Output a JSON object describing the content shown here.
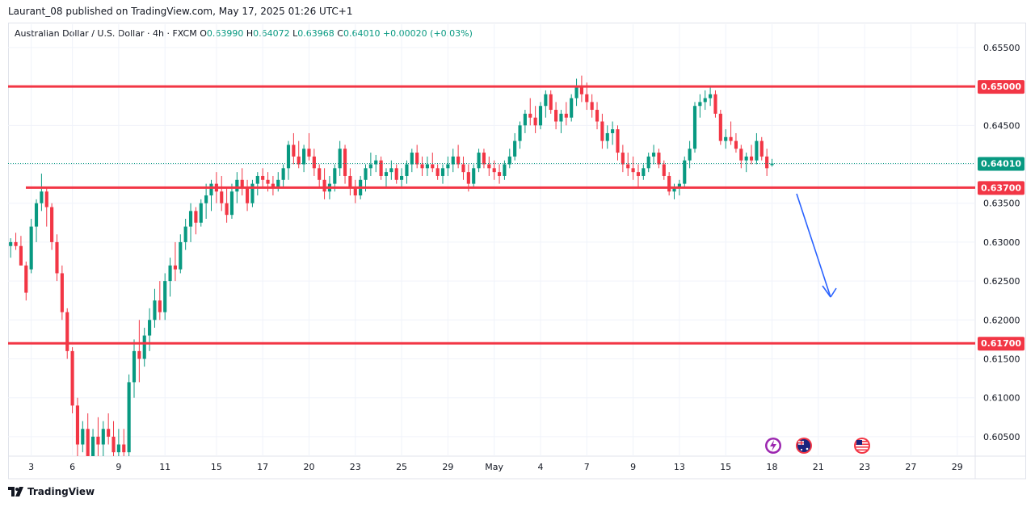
{
  "publication": "Laurant_08 published on TradingView.com, May 17, 2025 01:26 UTC+1",
  "legend": {
    "symbol": "Australian Dollar / U.S. Dollar · 4h · FXCM",
    "open_label": "O",
    "open": "0.63990",
    "high_label": "H",
    "high": "0.64072",
    "low_label": "L",
    "low": "0.63968",
    "close_label": "C",
    "close": "0.64010",
    "change": "+0.00020 (+0.03%)"
  },
  "brand": "TradingView",
  "colors": {
    "up": "#089981",
    "down": "#f23645",
    "level": "#f23645",
    "arrow": "#2962ff",
    "price_label": "#089981"
  },
  "chart_data": {
    "type": "candlestick",
    "title": "Australian Dollar / U.S. Dollar · 4h · FXCM",
    "ylim": [
      0.6025,
      0.658
    ],
    "y_ticks": [
      "0.65500",
      "0.65000",
      "0.64500",
      "0.64000",
      "0.63500",
      "0.63000",
      "0.62500",
      "0.62000",
      "0.61500",
      "0.61000",
      "0.60500"
    ],
    "x_ticks": [
      {
        "label": "3",
        "i": 4
      },
      {
        "label": "6",
        "i": 12
      },
      {
        "label": "9",
        "i": 21
      },
      {
        "label": "11",
        "i": 30
      },
      {
        "label": "15",
        "i": 40
      },
      {
        "label": "17",
        "i": 49
      },
      {
        "label": "20",
        "i": 58
      },
      {
        "label": "23",
        "i": 67
      },
      {
        "label": "25",
        "i": 76
      },
      {
        "label": "29",
        "i": 85
      },
      {
        "label": "May",
        "i": 94
      },
      {
        "label": "4",
        "i": 103
      },
      {
        "label": "7",
        "i": 112
      },
      {
        "label": "9",
        "i": 121
      },
      {
        "label": "13",
        "i": 130
      },
      {
        "label": "15",
        "i": 139
      },
      {
        "label": "18",
        "i": 148
      },
      {
        "label": "21",
        "i": 157
      },
      {
        "label": "23",
        "i": 166
      },
      {
        "label": "27",
        "i": 175
      },
      {
        "label": "29",
        "i": 184
      }
    ],
    "levels": [
      {
        "price": 0.65,
        "label": "0.65000"
      },
      {
        "price": 0.637,
        "label": "0.63700"
      },
      {
        "price": 0.617,
        "label": "0.61700"
      }
    ],
    "last_price": {
      "price": 0.6401,
      "label": "0.64010"
    },
    "candles": [
      [
        0.6295,
        0.6305,
        0.628,
        0.63
      ],
      [
        0.63,
        0.6312,
        0.629,
        0.6295
      ],
      [
        0.6295,
        0.6308,
        0.627,
        0.627
      ],
      [
        0.627,
        0.6275,
        0.6225,
        0.6235
      ],
      [
        0.6265,
        0.633,
        0.626,
        0.632
      ],
      [
        0.632,
        0.6355,
        0.63,
        0.635
      ],
      [
        0.635,
        0.6388,
        0.634,
        0.6365
      ],
      [
        0.6365,
        0.637,
        0.632,
        0.6345
      ],
      [
        0.6345,
        0.635,
        0.629,
        0.63
      ],
      [
        0.63,
        0.631,
        0.625,
        0.626
      ],
      [
        0.626,
        0.627,
        0.62,
        0.621
      ],
      [
        0.621,
        0.6215,
        0.615,
        0.616
      ],
      [
        0.616,
        0.6165,
        0.608,
        0.609
      ],
      [
        0.609,
        0.61,
        0.602,
        0.604
      ],
      [
        0.604,
        0.607,
        0.603,
        0.606
      ],
      [
        0.606,
        0.608,
        0.6,
        0.602
      ],
      [
        0.602,
        0.606,
        0.6,
        0.605
      ],
      [
        0.605,
        0.6075,
        0.602,
        0.604
      ],
      [
        0.604,
        0.607,
        0.601,
        0.606
      ],
      [
        0.606,
        0.608,
        0.604,
        0.605
      ],
      [
        0.605,
        0.607,
        0.602,
        0.603
      ],
      [
        0.603,
        0.606,
        0.601,
        0.604
      ],
      [
        0.604,
        0.606,
        0.602,
        0.603
      ],
      [
        0.603,
        0.613,
        0.602,
        0.612
      ],
      [
        0.612,
        0.6175,
        0.61,
        0.616
      ],
      [
        0.616,
        0.62,
        0.612,
        0.615
      ],
      [
        0.615,
        0.619,
        0.614,
        0.618
      ],
      [
        0.618,
        0.6215,
        0.616,
        0.62
      ],
      [
        0.62,
        0.624,
        0.619,
        0.6225
      ],
      [
        0.6225,
        0.625,
        0.62,
        0.621
      ],
      [
        0.621,
        0.626,
        0.62,
        0.625
      ],
      [
        0.625,
        0.628,
        0.623,
        0.627
      ],
      [
        0.627,
        0.63,
        0.625,
        0.6265
      ],
      [
        0.6265,
        0.631,
        0.626,
        0.63
      ],
      [
        0.63,
        0.633,
        0.629,
        0.632
      ],
      [
        0.632,
        0.635,
        0.63,
        0.634
      ],
      [
        0.634,
        0.6345,
        0.631,
        0.6325
      ],
      [
        0.6325,
        0.6355,
        0.632,
        0.635
      ],
      [
        0.635,
        0.6375,
        0.633,
        0.636
      ],
      [
        0.636,
        0.638,
        0.634,
        0.6375
      ],
      [
        0.6375,
        0.639,
        0.635,
        0.6365
      ],
      [
        0.6365,
        0.6385,
        0.634,
        0.635
      ],
      [
        0.635,
        0.637,
        0.6325,
        0.6335
      ],
      [
        0.6335,
        0.6375,
        0.633,
        0.6365
      ],
      [
        0.6365,
        0.639,
        0.635,
        0.638
      ],
      [
        0.638,
        0.6395,
        0.636,
        0.637
      ],
      [
        0.637,
        0.638,
        0.634,
        0.635
      ],
      [
        0.635,
        0.638,
        0.6345,
        0.6375
      ],
      [
        0.6375,
        0.639,
        0.636,
        0.6385
      ],
      [
        0.6385,
        0.6395,
        0.637,
        0.638
      ],
      [
        0.638,
        0.639,
        0.6365,
        0.6375
      ],
      [
        0.6375,
        0.6385,
        0.636,
        0.637
      ],
      [
        0.637,
        0.639,
        0.6365,
        0.638
      ],
      [
        0.638,
        0.64,
        0.637,
        0.6395
      ],
      [
        0.6395,
        0.643,
        0.638,
        0.6425
      ],
      [
        0.6425,
        0.644,
        0.64,
        0.641
      ],
      [
        0.641,
        0.643,
        0.6395,
        0.64
      ],
      [
        0.64,
        0.6425,
        0.639,
        0.642
      ],
      [
        0.642,
        0.644,
        0.6405,
        0.641
      ],
      [
        0.641,
        0.642,
        0.6385,
        0.6395
      ],
      [
        0.6395,
        0.64,
        0.637,
        0.638
      ],
      [
        0.638,
        0.6395,
        0.6355,
        0.6365
      ],
      [
        0.6365,
        0.6385,
        0.6355,
        0.6375
      ],
      [
        0.6375,
        0.64,
        0.6365,
        0.6395
      ],
      [
        0.6395,
        0.643,
        0.6385,
        0.642
      ],
      [
        0.642,
        0.6425,
        0.6375,
        0.6385
      ],
      [
        0.6385,
        0.6395,
        0.636,
        0.637
      ],
      [
        0.637,
        0.638,
        0.635,
        0.636
      ],
      [
        0.636,
        0.6385,
        0.6355,
        0.638
      ],
      [
        0.638,
        0.64,
        0.6365,
        0.6395
      ],
      [
        0.6395,
        0.6415,
        0.6385,
        0.64
      ],
      [
        0.64,
        0.6412,
        0.639,
        0.6405
      ],
      [
        0.6405,
        0.641,
        0.638,
        0.6385
      ],
      [
        0.6385,
        0.6395,
        0.637,
        0.639
      ],
      [
        0.639,
        0.6405,
        0.638,
        0.6395
      ],
      [
        0.6395,
        0.64,
        0.6375,
        0.638
      ],
      [
        0.638,
        0.6395,
        0.637,
        0.6385
      ],
      [
        0.6385,
        0.6405,
        0.6375,
        0.64
      ],
      [
        0.64,
        0.642,
        0.639,
        0.6415
      ],
      [
        0.6415,
        0.6425,
        0.6395,
        0.64
      ],
      [
        0.64,
        0.641,
        0.6385,
        0.6395
      ],
      [
        0.6395,
        0.641,
        0.6385,
        0.64
      ],
      [
        0.64,
        0.6415,
        0.639,
        0.6395
      ],
      [
        0.6395,
        0.64,
        0.638,
        0.6385
      ],
      [
        0.6385,
        0.64,
        0.6375,
        0.6395
      ],
      [
        0.6395,
        0.641,
        0.6385,
        0.64
      ],
      [
        0.64,
        0.642,
        0.639,
        0.641
      ],
      [
        0.641,
        0.6425,
        0.6395,
        0.64
      ],
      [
        0.64,
        0.641,
        0.638,
        0.639
      ],
      [
        0.639,
        0.64,
        0.6365,
        0.6375
      ],
      [
        0.6375,
        0.64,
        0.637,
        0.6395
      ],
      [
        0.6395,
        0.642,
        0.639,
        0.6415
      ],
      [
        0.6415,
        0.642,
        0.6395,
        0.64
      ],
      [
        0.64,
        0.641,
        0.6385,
        0.6395
      ],
      [
        0.6395,
        0.6405,
        0.638,
        0.639
      ],
      [
        0.639,
        0.64,
        0.6375,
        0.6385
      ],
      [
        0.6385,
        0.6405,
        0.638,
        0.64
      ],
      [
        0.64,
        0.642,
        0.6395,
        0.641
      ],
      [
        0.641,
        0.644,
        0.6405,
        0.643
      ],
      [
        0.643,
        0.6455,
        0.642,
        0.645
      ],
      [
        0.645,
        0.647,
        0.644,
        0.6465
      ],
      [
        0.6465,
        0.6485,
        0.645,
        0.646
      ],
      [
        0.646,
        0.6475,
        0.644,
        0.645
      ],
      [
        0.645,
        0.648,
        0.6445,
        0.6475
      ],
      [
        0.6475,
        0.6495,
        0.646,
        0.649
      ],
      [
        0.649,
        0.6495,
        0.6465,
        0.647
      ],
      [
        0.647,
        0.648,
        0.6445,
        0.6455
      ],
      [
        0.6455,
        0.647,
        0.644,
        0.6465
      ],
      [
        0.6465,
        0.648,
        0.645,
        0.646
      ],
      [
        0.646,
        0.649,
        0.6455,
        0.6485
      ],
      [
        0.6485,
        0.651,
        0.6475,
        0.65
      ],
      [
        0.65,
        0.6514,
        0.648,
        0.649
      ],
      [
        0.649,
        0.6505,
        0.647,
        0.648
      ],
      [
        0.648,
        0.649,
        0.646,
        0.647
      ],
      [
        0.647,
        0.648,
        0.6445,
        0.6455
      ],
      [
        0.6455,
        0.6465,
        0.642,
        0.643
      ],
      [
        0.643,
        0.645,
        0.642,
        0.644
      ],
      [
        0.644,
        0.6455,
        0.6425,
        0.6445
      ],
      [
        0.6445,
        0.645,
        0.6405,
        0.6415
      ],
      [
        0.6415,
        0.6425,
        0.639,
        0.64
      ],
      [
        0.64,
        0.6415,
        0.6385,
        0.6395
      ],
      [
        0.6395,
        0.641,
        0.638,
        0.639
      ],
      [
        0.639,
        0.64,
        0.637,
        0.6385
      ],
      [
        0.6385,
        0.64,
        0.638,
        0.6395
      ],
      [
        0.6395,
        0.6415,
        0.639,
        0.641
      ],
      [
        0.641,
        0.6425,
        0.64,
        0.6415
      ],
      [
        0.6415,
        0.642,
        0.6395,
        0.64
      ],
      [
        0.64,
        0.6405,
        0.638,
        0.6385
      ],
      [
        0.6385,
        0.639,
        0.636,
        0.6365
      ],
      [
        0.6365,
        0.6375,
        0.6355,
        0.637
      ],
      [
        0.637,
        0.638,
        0.636,
        0.6375
      ],
      [
        0.6375,
        0.641,
        0.637,
        0.6405
      ],
      [
        0.6405,
        0.643,
        0.6395,
        0.642
      ],
      [
        0.642,
        0.648,
        0.6415,
        0.6475
      ],
      [
        0.6475,
        0.649,
        0.646,
        0.648
      ],
      [
        0.648,
        0.6495,
        0.647,
        0.6485
      ],
      [
        0.6485,
        0.65,
        0.6475,
        0.649
      ],
      [
        0.649,
        0.6495,
        0.646,
        0.6465
      ],
      [
        0.6465,
        0.647,
        0.6425,
        0.643
      ],
      [
        0.643,
        0.6445,
        0.642,
        0.6435
      ],
      [
        0.6435,
        0.6455,
        0.6425,
        0.643
      ],
      [
        0.643,
        0.644,
        0.6415,
        0.642
      ],
      [
        0.642,
        0.6425,
        0.6395,
        0.6405
      ],
      [
        0.6405,
        0.6415,
        0.639,
        0.641
      ],
      [
        0.641,
        0.6425,
        0.64,
        0.6405
      ],
      [
        0.6405,
        0.644,
        0.64,
        0.643
      ],
      [
        0.643,
        0.6435,
        0.6405,
        0.641
      ],
      [
        0.641,
        0.642,
        0.6385,
        0.6395
      ],
      [
        0.6399,
        0.6407,
        0.6397,
        0.6401
      ]
    ],
    "total_slots": 188
  }
}
